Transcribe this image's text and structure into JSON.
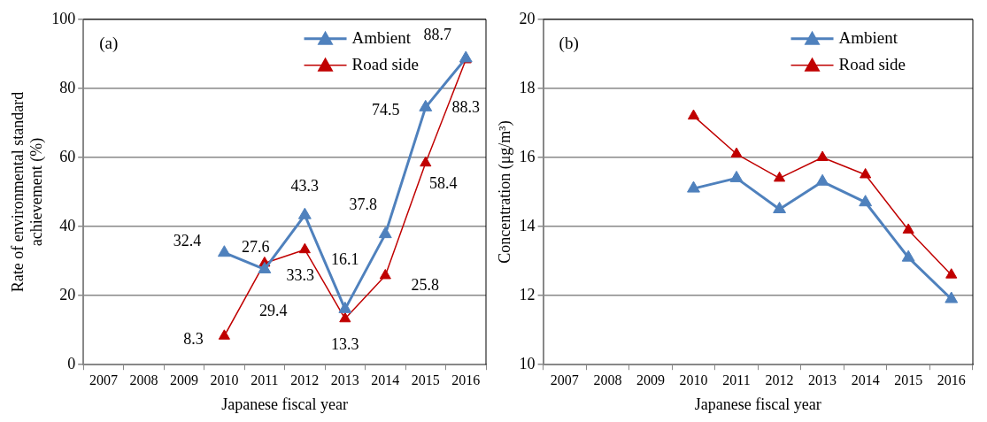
{
  "chart_data": [
    {
      "type": "line",
      "annotations": [
        "(a)"
      ],
      "xlabel": "Japanese fiscal year",
      "ylabel": "Rate of environmental standard achievement (%)",
      "categories": [
        "2007",
        "2008",
        "2009",
        "2010",
        "2011",
        "2012",
        "2013",
        "2014",
        "2015",
        "2016"
      ],
      "series": [
        {
          "name": "Ambient",
          "color": "#4f81bd",
          "values": [
            null,
            null,
            null,
            32.4,
            27.6,
            43.3,
            16.1,
            37.8,
            74.5,
            88.7
          ]
        },
        {
          "name": "Road side",
          "color": "#c00000",
          "values": [
            null,
            null,
            null,
            8.3,
            29.4,
            33.3,
            13.3,
            25.8,
            58.4,
            88.3
          ]
        }
      ],
      "ylim": [
        0,
        100
      ],
      "yticks": [
        0,
        20,
        40,
        60,
        80,
        100
      ],
      "grid": "y",
      "legend": "top right",
      "marker": "triangle",
      "data_labels": true
    },
    {
      "type": "line",
      "annotations": [
        "(b)"
      ],
      "xlabel": "Japanese fiscal year",
      "ylabel": "Concentration (μg/m³)",
      "categories": [
        "2007",
        "2008",
        "2009",
        "2010",
        "2011",
        "2012",
        "2013",
        "2014",
        "2015",
        "2016"
      ],
      "series": [
        {
          "name": "Ambient",
          "color": "#4f81bd",
          "values": [
            null,
            null,
            null,
            15.1,
            15.4,
            14.5,
            15.3,
            14.7,
            13.1,
            11.9
          ]
        },
        {
          "name": "Road side",
          "color": "#c00000",
          "values": [
            null,
            null,
            null,
            17.2,
            16.1,
            15.4,
            16.0,
            15.5,
            13.9,
            12.6
          ]
        }
      ],
      "ylim": [
        10,
        20
      ],
      "yticks": [
        10,
        12,
        14,
        16,
        18,
        20
      ],
      "grid": "y",
      "legend": "top right",
      "marker": "triangle"
    }
  ]
}
